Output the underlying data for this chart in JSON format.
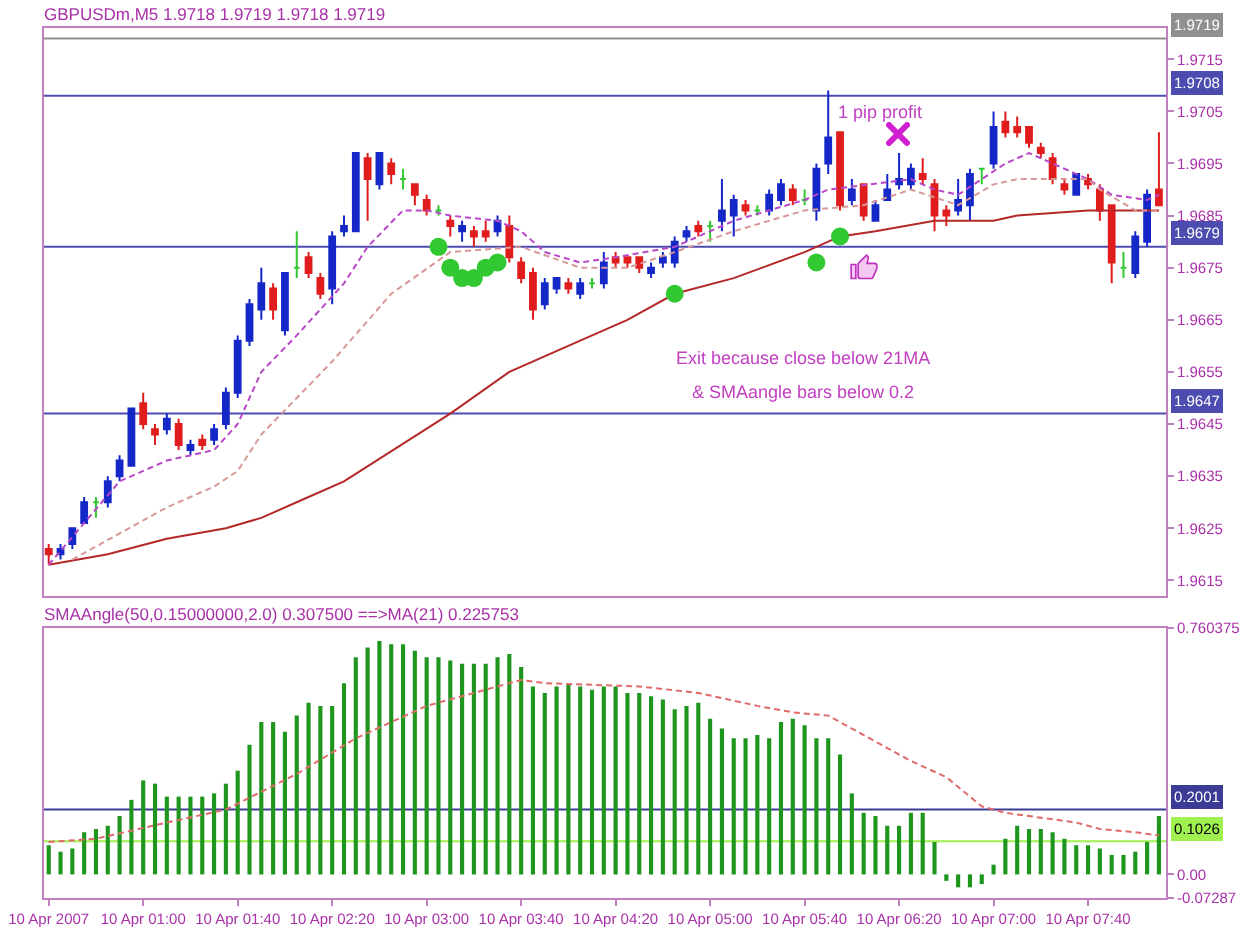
{
  "chart_data": [
    {
      "type": "candlestick",
      "title": "GBPUSDm,M5 1.9718 1.9719 1.9718 1.9719",
      "x": [
        "2007-04-10T00:20",
        "2007-04-10T00:25",
        "2007-04-10T00:30",
        "2007-04-10T00:35",
        "2007-04-10T00:40",
        "2007-04-10T00:45",
        "2007-04-10T00:50",
        "2007-04-10T00:55",
        "2007-04-10T01:00",
        "2007-04-10T01:05",
        "2007-04-10T01:10",
        "2007-04-10T01:15",
        "2007-04-10T01:20",
        "2007-04-10T01:25",
        "2007-04-10T01:30",
        "2007-04-10T01:35",
        "2007-04-10T01:40",
        "2007-04-10T01:45",
        "2007-04-10T01:50",
        "2007-04-10T01:55",
        "2007-04-10T02:00",
        "2007-04-10T02:05",
        "2007-04-10T02:10",
        "2007-04-10T02:15",
        "2007-04-10T02:20",
        "2007-04-10T02:25",
        "2007-04-10T02:30",
        "2007-04-10T02:35",
        "2007-04-10T02:40",
        "2007-04-10T02:45",
        "2007-04-10T02:50",
        "2007-04-10T02:55",
        "2007-04-10T03:00",
        "2007-04-10T03:05",
        "2007-04-10T03:10",
        "2007-04-10T03:15",
        "2007-04-10T03:20",
        "2007-04-10T03:25",
        "2007-04-10T03:30",
        "2007-04-10T03:35",
        "2007-04-10T03:40",
        "2007-04-10T03:45",
        "2007-04-10T03:50",
        "2007-04-10T03:55",
        "2007-04-10T04:00",
        "2007-04-10T04:05",
        "2007-04-10T04:10",
        "2007-04-10T04:15",
        "2007-04-10T04:20",
        "2007-04-10T04:25",
        "2007-04-10T04:30",
        "2007-04-10T04:35",
        "2007-04-10T04:40",
        "2007-04-10T04:45",
        "2007-04-10T04:50",
        "2007-04-10T04:55",
        "2007-04-10T05:00",
        "2007-04-10T05:05",
        "2007-04-10T05:10",
        "2007-04-10T05:15",
        "2007-04-10T05:20",
        "2007-04-10T05:25",
        "2007-04-10T05:30",
        "2007-04-10T05:35",
        "2007-04-10T05:40",
        "2007-04-10T05:45",
        "2007-04-10T05:50",
        "2007-04-10T05:55",
        "2007-04-10T06:00",
        "2007-04-10T06:05",
        "2007-04-10T06:10",
        "2007-04-10T06:15",
        "2007-04-10T06:20",
        "2007-04-10T06:25",
        "2007-04-10T06:30",
        "2007-04-10T06:35",
        "2007-04-10T06:40",
        "2007-04-10T06:45",
        "2007-04-10T06:50",
        "2007-04-10T06:55",
        "2007-04-10T07:00",
        "2007-04-10T07:05",
        "2007-04-10T07:10",
        "2007-04-10T07:15",
        "2007-04-10T07:20",
        "2007-04-10T07:25",
        "2007-04-10T07:30",
        "2007-04-10T07:35",
        "2007-04-10T07:40",
        "2007-04-10T07:45",
        "2007-04-10T07:50",
        "2007-04-10T07:55",
        "2007-04-10T08:00",
        "2007-04-10T08:05",
        "2007-04-10T08:10"
      ],
      "ohlc": [
        [
          1.9621,
          1.9622,
          1.9618,
          1.962
        ],
        [
          1.962,
          1.9622,
          1.9619,
          1.9621
        ],
        [
          1.9622,
          1.9625,
          1.9621,
          1.9625
        ],
        [
          1.9626,
          1.9631,
          1.9626,
          1.963
        ],
        [
          1.963,
          1.9631,
          1.9627,
          1.963
        ],
        [
          1.963,
          1.9635,
          1.9629,
          1.9634
        ],
        [
          1.9635,
          1.9639,
          1.9634,
          1.9638
        ],
        [
          1.9637,
          1.9648,
          1.9637,
          1.9648
        ],
        [
          1.9649,
          1.9651,
          1.9644,
          1.9645
        ],
        [
          1.9644,
          1.9645,
          1.9641,
          1.9643
        ],
        [
          1.9644,
          1.9647,
          1.9643,
          1.9646
        ],
        [
          1.9645,
          1.9646,
          1.964,
          1.9641
        ],
        [
          1.964,
          1.9642,
          1.9639,
          1.9641
        ],
        [
          1.9642,
          1.9643,
          1.964,
          1.9641
        ],
        [
          1.9642,
          1.9645,
          1.9641,
          1.9644
        ],
        [
          1.9645,
          1.9652,
          1.9644,
          1.9651
        ],
        [
          1.9651,
          1.9662,
          1.965,
          1.9661
        ],
        [
          1.9661,
          1.9669,
          1.966,
          1.9668
        ],
        [
          1.9667,
          1.9675,
          1.9665,
          1.9672
        ],
        [
          1.9671,
          1.9672,
          1.9665,
          1.9667
        ],
        [
          1.9663,
          1.9674,
          1.9662,
          1.9674
        ],
        [
          1.9675,
          1.9682,
          1.9673,
          1.9675
        ],
        [
          1.9677,
          1.9678,
          1.9673,
          1.9674
        ],
        [
          1.9673,
          1.9674,
          1.9669,
          1.967
        ],
        [
          1.9671,
          1.9682,
          1.9668,
          1.9681
        ],
        [
          1.9682,
          1.9685,
          1.9681,
          1.9683
        ],
        [
          1.9682,
          1.9697,
          1.9682,
          1.9697
        ],
        [
          1.9696,
          1.9697,
          1.9684,
          1.9692
        ],
        [
          1.9691,
          1.9697,
          1.969,
          1.9697
        ],
        [
          1.9695,
          1.9696,
          1.9691,
          1.9693
        ],
        [
          1.9692,
          1.9694,
          1.969,
          1.9692
        ],
        [
          1.9691,
          1.9691,
          1.9687,
          1.9689
        ],
        [
          1.9688,
          1.9689,
          1.9685,
          1.9686
        ],
        [
          1.9686,
          1.9687,
          1.9685,
          1.9686
        ],
        [
          1.9684,
          1.9685,
          1.9681,
          1.9683
        ],
        [
          1.9682,
          1.9684,
          1.968,
          1.9683
        ],
        [
          1.9682,
          1.9683,
          1.9679,
          1.9681
        ],
        [
          1.9682,
          1.9684,
          1.968,
          1.9681
        ],
        [
          1.9682,
          1.9685,
          1.9681,
          1.9684
        ],
        [
          1.9683,
          1.9685,
          1.9676,
          1.9677
        ],
        [
          1.9676,
          1.9677,
          1.9672,
          1.9673
        ],
        [
          1.9674,
          1.9675,
          1.9665,
          1.9667
        ],
        [
          1.9668,
          1.9673,
          1.9667,
          1.9672
        ],
        [
          1.9671,
          1.9673,
          1.967,
          1.9673
        ],
        [
          1.9672,
          1.9673,
          1.967,
          1.9671
        ],
        [
          1.967,
          1.9673,
          1.9669,
          1.9672
        ],
        [
          1.9672,
          1.9673,
          1.9671,
          1.9672
        ],
        [
          1.9672,
          1.9678,
          1.9671,
          1.9676
        ],
        [
          1.9677,
          1.9678,
          1.9675,
          1.9676
        ],
        [
          1.9677,
          1.9677,
          1.9675,
          1.9676
        ],
        [
          1.9677,
          1.9677,
          1.9674,
          1.9675
        ],
        [
          1.9674,
          1.9676,
          1.9673,
          1.9675
        ],
        [
          1.9676,
          1.9678,
          1.9675,
          1.9677
        ],
        [
          1.9676,
          1.9681,
          1.9675,
          1.968
        ],
        [
          1.9681,
          1.9683,
          1.968,
          1.9682
        ],
        [
          1.9683,
          1.9684,
          1.9681,
          1.9682
        ],
        [
          1.9683,
          1.9684,
          1.968,
          1.9683
        ],
        [
          1.9684,
          1.9692,
          1.9682,
          1.9686
        ],
        [
          1.9685,
          1.9689,
          1.9681,
          1.9688
        ],
        [
          1.9687,
          1.9688,
          1.9685,
          1.9686
        ],
        [
          1.9686,
          1.9687,
          1.9685,
          1.9686
        ],
        [
          1.9686,
          1.969,
          1.9685,
          1.9689
        ],
        [
          1.9688,
          1.9692,
          1.9687,
          1.9691
        ],
        [
          1.969,
          1.9691,
          1.9687,
          1.9688
        ],
        [
          1.9688,
          1.969,
          1.9687,
          1.9688
        ],
        [
          1.9686,
          1.9695,
          1.9684,
          1.9694
        ],
        [
          1.9695,
          1.9709,
          1.9693,
          1.97
        ],
        [
          1.9701,
          1.9701,
          1.9686,
          1.9687
        ],
        [
          1.9688,
          1.9692,
          1.9687,
          1.969
        ],
        [
          1.9691,
          1.9691,
          1.9684,
          1.9685
        ],
        [
          1.9684,
          1.9688,
          1.9684,
          1.9687
        ],
        [
          1.9688,
          1.9693,
          1.9688,
          1.969
        ],
        [
          1.9691,
          1.9697,
          1.969,
          1.9692
        ],
        [
          1.9691,
          1.9695,
          1.969,
          1.9694
        ],
        [
          1.9693,
          1.9696,
          1.9691,
          1.9692
        ],
        [
          1.9691,
          1.9692,
          1.9682,
          1.9685
        ],
        [
          1.9686,
          1.9687,
          1.9683,
          1.9685
        ],
        [
          1.9686,
          1.9692,
          1.9685,
          1.9688
        ],
        [
          1.9687,
          1.9694,
          1.9684,
          1.9693
        ],
        [
          1.9694,
          1.9694,
          1.9691,
          1.9694
        ],
        [
          1.9695,
          1.9705,
          1.9694,
          1.9702
        ],
        [
          1.9703,
          1.9705,
          1.97,
          1.9701
        ],
        [
          1.9702,
          1.9704,
          1.97,
          1.9701
        ],
        [
          1.9702,
          1.9702,
          1.9698,
          1.9699
        ],
        [
          1.9698,
          1.9699,
          1.9696,
          1.9697
        ],
        [
          1.9696,
          1.9697,
          1.9691,
          1.9692
        ],
        [
          1.9691,
          1.9692,
          1.9689,
          1.969
        ],
        [
          1.9689,
          1.9693,
          1.9689,
          1.9693
        ],
        [
          1.9692,
          1.9693,
          1.969,
          1.9691
        ],
        [
          1.969,
          1.9691,
          1.9684,
          1.9686
        ],
        [
          1.9687,
          1.9687,
          1.9672,
          1.9676
        ],
        [
          1.9675,
          1.9678,
          1.9673,
          1.9675
        ],
        [
          1.9674,
          1.9682,
          1.9673,
          1.9681
        ],
        [
          1.968,
          1.969,
          1.9679,
          1.9689
        ],
        [
          1.969,
          1.9701,
          1.9687,
          1.9687
        ]
      ],
      "colors": [
        "#e01c1c",
        "#1428c8",
        "#1428c8",
        "#1428c8",
        "#32c832",
        "#1428c8",
        "#1428c8",
        "#1428c8",
        "#e01c1c",
        "#e01c1c",
        "#1428c8",
        "#e01c1c",
        "#1428c8",
        "#e01c1c",
        "#1428c8",
        "#1428c8",
        "#1428c8",
        "#1428c8",
        "#1428c8",
        "#e01c1c",
        "#1428c8",
        "#32c832",
        "#e01c1c",
        "#e01c1c",
        "#1428c8",
        "#1428c8",
        "#1428c8",
        "#e01c1c",
        "#1428c8",
        "#e01c1c",
        "#32c832",
        "#e01c1c",
        "#e01c1c",
        "#32c832",
        "#e01c1c",
        "#1428c8",
        "#e01c1c",
        "#e01c1c",
        "#1428c8",
        "#e01c1c",
        "#e01c1c",
        "#e01c1c",
        "#1428c8",
        "#1428c8",
        "#e01c1c",
        "#1428c8",
        "#32c832",
        "#1428c8",
        "#e01c1c",
        "#e01c1c",
        "#e01c1c",
        "#1428c8",
        "#1428c8",
        "#1428c8",
        "#1428c8",
        "#e01c1c",
        "#32c832",
        "#1428c8",
        "#1428c8",
        "#e01c1c",
        "#32c832",
        "#1428c8",
        "#1428c8",
        "#e01c1c",
        "#32c832",
        "#1428c8",
        "#1428c8",
        "#e01c1c",
        "#1428c8",
        "#e01c1c",
        "#1428c8",
        "#1428c8",
        "#1428c8",
        "#1428c8",
        "#e01c1c",
        "#e01c1c",
        "#e01c1c",
        "#1428c8",
        "#1428c8",
        "#32c832",
        "#1428c8",
        "#e01c1c",
        "#e01c1c",
        "#e01c1c",
        "#e01c1c",
        "#e01c1c",
        "#e01c1c",
        "#1428c8",
        "#e01c1c",
        "#e01c1c",
        "#e01c1c",
        "#32c832",
        "#1428c8",
        "#1428c8",
        "#e01c1c"
      ],
      "series": [
        {
          "type": "line",
          "color": "#b42828",
          "x": [
            "2007-04-10T00:20",
            "2007-04-10T00:45",
            "2007-04-10T01:10",
            "2007-04-10T01:35",
            "2007-04-10T01:50",
            "2007-04-10T02:10",
            "2007-04-10T02:25",
            "2007-04-10T03:10",
            "2007-04-10T03:35",
            "2007-04-10T04:05",
            "2007-04-10T04:25",
            "2007-04-10T04:45",
            "2007-04-10T05:10",
            "2007-04-10T05:40",
            "2007-04-10T05:55",
            "2007-04-10T06:10",
            "2007-04-10T06:35",
            "2007-04-10T07:00",
            "2007-04-10T07:10",
            "2007-04-10T07:40",
            "2007-04-10T08:10"
          ],
          "values": [
            1.9618,
            1.962,
            1.9623,
            1.9625,
            1.9627,
            1.9631,
            1.9634,
            1.9647,
            1.9655,
            1.9661,
            1.9665,
            1.967,
            1.9673,
            1.9678,
            1.9681,
            1.9682,
            1.9684,
            1.9684,
            1.9685,
            1.9686,
            1.9686
          ]
        },
        {
          "type": "line",
          "color": "#b848c8",
          "line_style": "dashed",
          "x": [
            "2007-04-10T00:20",
            "2007-04-10T00:50",
            "2007-04-10T01:10",
            "2007-04-10T01:30",
            "2007-04-10T01:40",
            "2007-04-10T01:50",
            "2007-04-10T02:05",
            "2007-04-10T02:15",
            "2007-04-10T02:25",
            "2007-04-10T02:35",
            "2007-04-10T02:50",
            "2007-04-10T03:00",
            "2007-04-10T03:10",
            "2007-04-10T03:30",
            "2007-04-10T03:40",
            "2007-04-10T03:50",
            "2007-04-10T04:05",
            "2007-04-10T04:20",
            "2007-04-10T04:45",
            "2007-04-10T05:10",
            "2007-04-10T05:40",
            "2007-04-10T05:50",
            "2007-04-10T06:25",
            "2007-04-10T06:35",
            "2007-04-10T06:45",
            "2007-04-10T06:55",
            "2007-04-10T07:05",
            "2007-04-10T07:15",
            "2007-04-10T07:25",
            "2007-04-10T07:40",
            "2007-04-10T07:50",
            "2007-04-10T08:05",
            "2007-04-10T08:10"
          ],
          "values": [
            1.9618,
            1.9634,
            1.9638,
            1.964,
            1.9645,
            1.9655,
            1.9662,
            1.9667,
            1.9672,
            1.9679,
            1.9686,
            1.9686,
            1.9685,
            1.9684,
            1.9682,
            1.9678,
            1.9676,
            1.9677,
            1.9679,
            1.9684,
            1.9688,
            1.969,
            1.9692,
            1.969,
            1.9689,
            1.9692,
            1.9695,
            1.9697,
            1.9695,
            1.9692,
            1.9689,
            1.9688,
            1.9689
          ]
        },
        {
          "type": "line",
          "color": "#d89898",
          "line_style": "dashed",
          "x": [
            "2007-04-10T00:30",
            "2007-04-10T01:10",
            "2007-04-10T01:30",
            "2007-04-10T01:40",
            "2007-04-10T01:50",
            "2007-04-10T02:05",
            "2007-04-10T02:20",
            "2007-04-10T02:45",
            "2007-04-10T03:10",
            "2007-04-10T03:40",
            "2007-04-10T04:05",
            "2007-04-10T04:25",
            "2007-04-10T04:45",
            "2007-04-10T05:10",
            "2007-04-10T05:40",
            "2007-04-10T06:05",
            "2007-04-10T06:25",
            "2007-04-10T06:45",
            "2007-04-10T07:00",
            "2007-04-10T07:10",
            "2007-04-10T07:25",
            "2007-04-10T07:40",
            "2007-04-10T07:45",
            "2007-04-10T08:00",
            "2007-04-10T08:10"
          ],
          "values": [
            1.9619,
            1.9629,
            1.9633,
            1.9636,
            1.9643,
            1.965,
            1.9657,
            1.967,
            1.9678,
            1.9679,
            1.9675,
            1.9675,
            1.9678,
            1.9682,
            1.9686,
            1.9687,
            1.969,
            1.9687,
            1.9691,
            1.9692,
            1.9692,
            1.9692,
            1.969,
            1.9686,
            1.9686
          ]
        },
        {
          "type": "scatter",
          "color": "#32c832",
          "marker": "circle",
          "x": [
            "2007-04-10T03:05",
            "2007-04-10T03:10",
            "2007-04-10T03:15",
            "2007-04-10T03:20",
            "2007-04-10T03:25",
            "2007-04-10T03:30",
            "2007-04-10T04:45",
            "2007-04-10T05:45",
            "2007-04-10T05:55"
          ],
          "values": [
            1.9679,
            1.9675,
            1.9673,
            1.9673,
            1.9675,
            1.9676,
            1.967,
            1.9676,
            1.9681
          ]
        }
      ],
      "xlim": [
        "2007-04-10T00:18",
        "2007-04-10T08:13"
      ],
      "ylim": [
        1.9612,
        1.9721
      ],
      "yticks": [
        1.9615,
        1.9625,
        1.9635,
        1.9645,
        1.9655,
        1.9665,
        1.9675,
        1.9685,
        1.9695,
        1.9705,
        1.9715
      ],
      "tick_labels": "y",
      "ref_lines": [
        {
          "axis": "y",
          "value": 1.9719,
          "label": "1.9719",
          "color": "#909090"
        },
        {
          "axis": "y",
          "value": 1.9708,
          "label": "1.9708",
          "color": "#4c4cb0"
        },
        {
          "axis": "y",
          "value": 1.9679,
          "label": "1.9679",
          "color": "#4c4cb0"
        },
        {
          "axis": "y",
          "value": 1.9647,
          "label": "1.9647",
          "color": "#4c4cb0"
        }
      ],
      "annotations": [
        {
          "text": "1 pip profit",
          "x": "2007-04-10T05:50",
          "y": 1.9709
        },
        "Exit because close below 21MA",
        "& SMAangle bars below 0.2"
      ]
    },
    {
      "type": "bar",
      "title": "SMAAngle(50,0.15000000,2.0) 0.307500 ==>MA(21) 0.225753",
      "x": [
        "2007-04-10T00:20",
        "2007-04-10T00:25",
        "2007-04-10T00:30",
        "2007-04-10T00:35",
        "2007-04-10T00:40",
        "2007-04-10T00:45",
        "2007-04-10T00:50",
        "2007-04-10T00:55",
        "2007-04-10T01:00",
        "2007-04-10T01:05",
        "2007-04-10T01:10",
        "2007-04-10T01:15",
        "2007-04-10T01:20",
        "2007-04-10T01:25",
        "2007-04-10T01:30",
        "2007-04-10T01:35",
        "2007-04-10T01:40",
        "2007-04-10T01:45",
        "2007-04-10T01:50",
        "2007-04-10T01:55",
        "2007-04-10T02:00",
        "2007-04-10T02:05",
        "2007-04-10T02:10",
        "2007-04-10T02:15",
        "2007-04-10T02:20",
        "2007-04-10T02:25",
        "2007-04-10T02:30",
        "2007-04-10T02:35",
        "2007-04-10T02:40",
        "2007-04-10T02:45",
        "2007-04-10T02:50",
        "2007-04-10T02:55",
        "2007-04-10T03:00",
        "2007-04-10T03:05",
        "2007-04-10T03:10",
        "2007-04-10T03:15",
        "2007-04-10T03:20",
        "2007-04-10T03:25",
        "2007-04-10T03:30",
        "2007-04-10T03:35",
        "2007-04-10T03:40",
        "2007-04-10T03:45",
        "2007-04-10T03:50",
        "2007-04-10T03:55",
        "2007-04-10T04:00",
        "2007-04-10T04:05",
        "2007-04-10T04:10",
        "2007-04-10T04:15",
        "2007-04-10T04:20",
        "2007-04-10T04:25",
        "2007-04-10T04:30",
        "2007-04-10T04:35",
        "2007-04-10T04:40",
        "2007-04-10T04:45",
        "2007-04-10T04:50",
        "2007-04-10T04:55",
        "2007-04-10T05:00",
        "2007-04-10T05:05",
        "2007-04-10T05:10",
        "2007-04-10T05:15",
        "2007-04-10T05:20",
        "2007-04-10T05:25",
        "2007-04-10T05:30",
        "2007-04-10T05:35",
        "2007-04-10T05:40",
        "2007-04-10T05:45",
        "2007-04-10T05:50",
        "2007-04-10T05:55",
        "2007-04-10T06:00",
        "2007-04-10T06:05",
        "2007-04-10T06:10",
        "2007-04-10T06:15",
        "2007-04-10T06:20",
        "2007-04-10T06:25",
        "2007-04-10T06:30",
        "2007-04-10T06:35",
        "2007-04-10T06:40",
        "2007-04-10T06:45",
        "2007-04-10T06:50",
        "2007-04-10T06:55",
        "2007-04-10T07:00",
        "2007-04-10T07:05",
        "2007-04-10T07:10",
        "2007-04-10T07:15",
        "2007-04-10T07:20",
        "2007-04-10T07:25",
        "2007-04-10T07:30",
        "2007-04-10T07:35",
        "2007-04-10T07:40",
        "2007-04-10T07:45",
        "2007-04-10T07:50",
        "2007-04-10T07:55",
        "2007-04-10T08:00",
        "2007-04-10T08:05",
        "2007-04-10T08:10"
      ],
      "series": [
        {
          "color": "#1e961e",
          "values": [
            0.09,
            0.07,
            0.08,
            0.13,
            0.14,
            0.15,
            0.18,
            0.23,
            0.29,
            0.28,
            0.24,
            0.24,
            0.24,
            0.24,
            0.25,
            0.28,
            0.32,
            0.4,
            0.47,
            0.47,
            0.44,
            0.49,
            0.53,
            0.52,
            0.52,
            0.59,
            0.67,
            0.7,
            0.72,
            0.71,
            0.71,
            0.69,
            0.67,
            0.67,
            0.66,
            0.65,
            0.65,
            0.65,
            0.67,
            0.68,
            0.64,
            0.58,
            0.56,
            0.58,
            0.59,
            0.58,
            0.57,
            0.58,
            0.58,
            0.56,
            0.56,
            0.55,
            0.54,
            0.51,
            0.52,
            0.53,
            0.48,
            0.45,
            0.42,
            0.42,
            0.43,
            0.42,
            0.47,
            0.48,
            0.46,
            0.42,
            0.42,
            0.37,
            0.25,
            0.19,
            0.18,
            0.15,
            0.15,
            0.19,
            0.19,
            0.1,
            -0.02,
            -0.04,
            -0.04,
            -0.03,
            0.03,
            0.11,
            0.15,
            0.14,
            0.14,
            0.13,
            0.11,
            0.09,
            0.09,
            0.08,
            0.06,
            0.06,
            0.07,
            0.1,
            0.18
          ]
        },
        {
          "type": "line",
          "color": "#e06a6a",
          "line_style": "dashed",
          "x": [
            "2007-04-10T00:20",
            "2007-04-10T00:40",
            "2007-04-10T01:10",
            "2007-04-10T01:35",
            "2007-04-10T02:05",
            "2007-04-10T02:30",
            "2007-04-10T03:00",
            "2007-04-10T03:25",
            "2007-04-10T03:40",
            "2007-04-10T03:50",
            "2007-04-10T04:30",
            "2007-04-10T04:55",
            "2007-04-10T05:20",
            "2007-04-10T05:35",
            "2007-04-10T05:50",
            "2007-04-10T06:00",
            "2007-04-10T06:15",
            "2007-04-10T06:25",
            "2007-04-10T06:40",
            "2007-04-10T06:55",
            "2007-04-10T07:05",
            "2007-04-10T07:35",
            "2007-04-10T07:45",
            "2007-04-10T08:00",
            "2007-04-10T08:10"
          ],
          "values": [
            0.1,
            0.11,
            0.16,
            0.2,
            0.31,
            0.42,
            0.52,
            0.57,
            0.6,
            0.59,
            0.58,
            0.56,
            0.52,
            0.5,
            0.49,
            0.45,
            0.39,
            0.35,
            0.3,
            0.21,
            0.19,
            0.16,
            0.14,
            0.13,
            0.12
          ]
        }
      ],
      "xlim": [
        "2007-04-10T00:18",
        "2007-04-10T08:13"
      ],
      "xticks": [
        {
          "value": "2007-04-10T00:20",
          "label": "10 Apr 2007"
        },
        {
          "value": "2007-04-10T01:00",
          "label": "10 Apr 01:00"
        },
        {
          "value": "2007-04-10T01:40",
          "label": "10 Apr 01:40"
        },
        {
          "value": "2007-04-10T02:20",
          "label": "10 Apr 02:20"
        },
        {
          "value": "2007-04-10T03:00",
          "label": "10 Apr 03:00"
        },
        {
          "value": "2007-04-10T03:40",
          "label": "10 Apr 03:40"
        },
        {
          "value": "2007-04-10T04:20",
          "label": "10 Apr 04:20"
        },
        {
          "value": "2007-04-10T05:00",
          "label": "10 Apr 05:00"
        },
        {
          "value": "2007-04-10T05:40",
          "label": "10 Apr 05:40"
        },
        {
          "value": "2007-04-10T06:20",
          "label": "10 Apr 06:20"
        },
        {
          "value": "2007-04-10T07:00",
          "label": "10 Apr 07:00"
        },
        {
          "value": "2007-04-10T07:40",
          "label": "10 Apr 07:40"
        }
      ],
      "ylim": [
        -0.07287,
        0.760375
      ],
      "yticks": [
        0.760375,
        {
          "value": 0,
          "label": "0.00"
        },
        -0.07287
      ],
      "ref_lines": [
        {
          "axis": "y",
          "value": 0.2001,
          "label": "0.2001",
          "color": "#3c3c96"
        },
        {
          "axis": "y",
          "value": 0.1026,
          "label": "0.1026",
          "color": "#a0f050"
        }
      ]
    }
  ]
}
